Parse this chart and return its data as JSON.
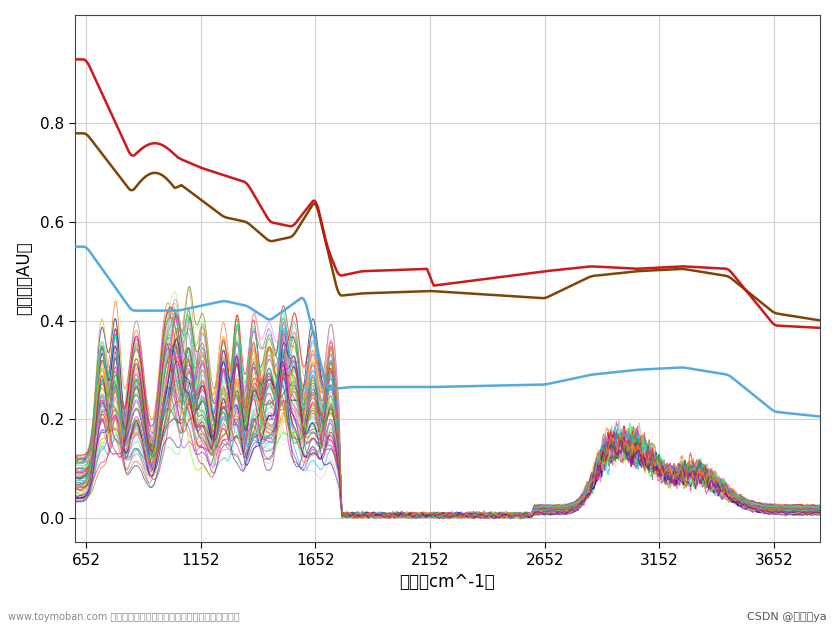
{
  "xlabel": "波数（cm^-1）",
  "ylabel": "吸光度（AU）",
  "xlim": [
    602,
    3852
  ],
  "ylim": [
    -0.05,
    1.02
  ],
  "xticks": [
    652,
    1152,
    1652,
    2152,
    2652,
    3152,
    3652
  ],
  "yticks": [
    0.0,
    0.2,
    0.4,
    0.6,
    0.8
  ],
  "xmin": 602,
  "xmax": 3852,
  "bg_color": "#ffffff",
  "grid_color": "#d0d0d0",
  "watermark_left": "www.toymoban.com 网络图片仅供展示，非存储，如有侵权请联系删除",
  "watermark_right": "CSDN @小渝儒ya",
  "num_colored_lines": 65,
  "colored_line_alpha": 0.65
}
